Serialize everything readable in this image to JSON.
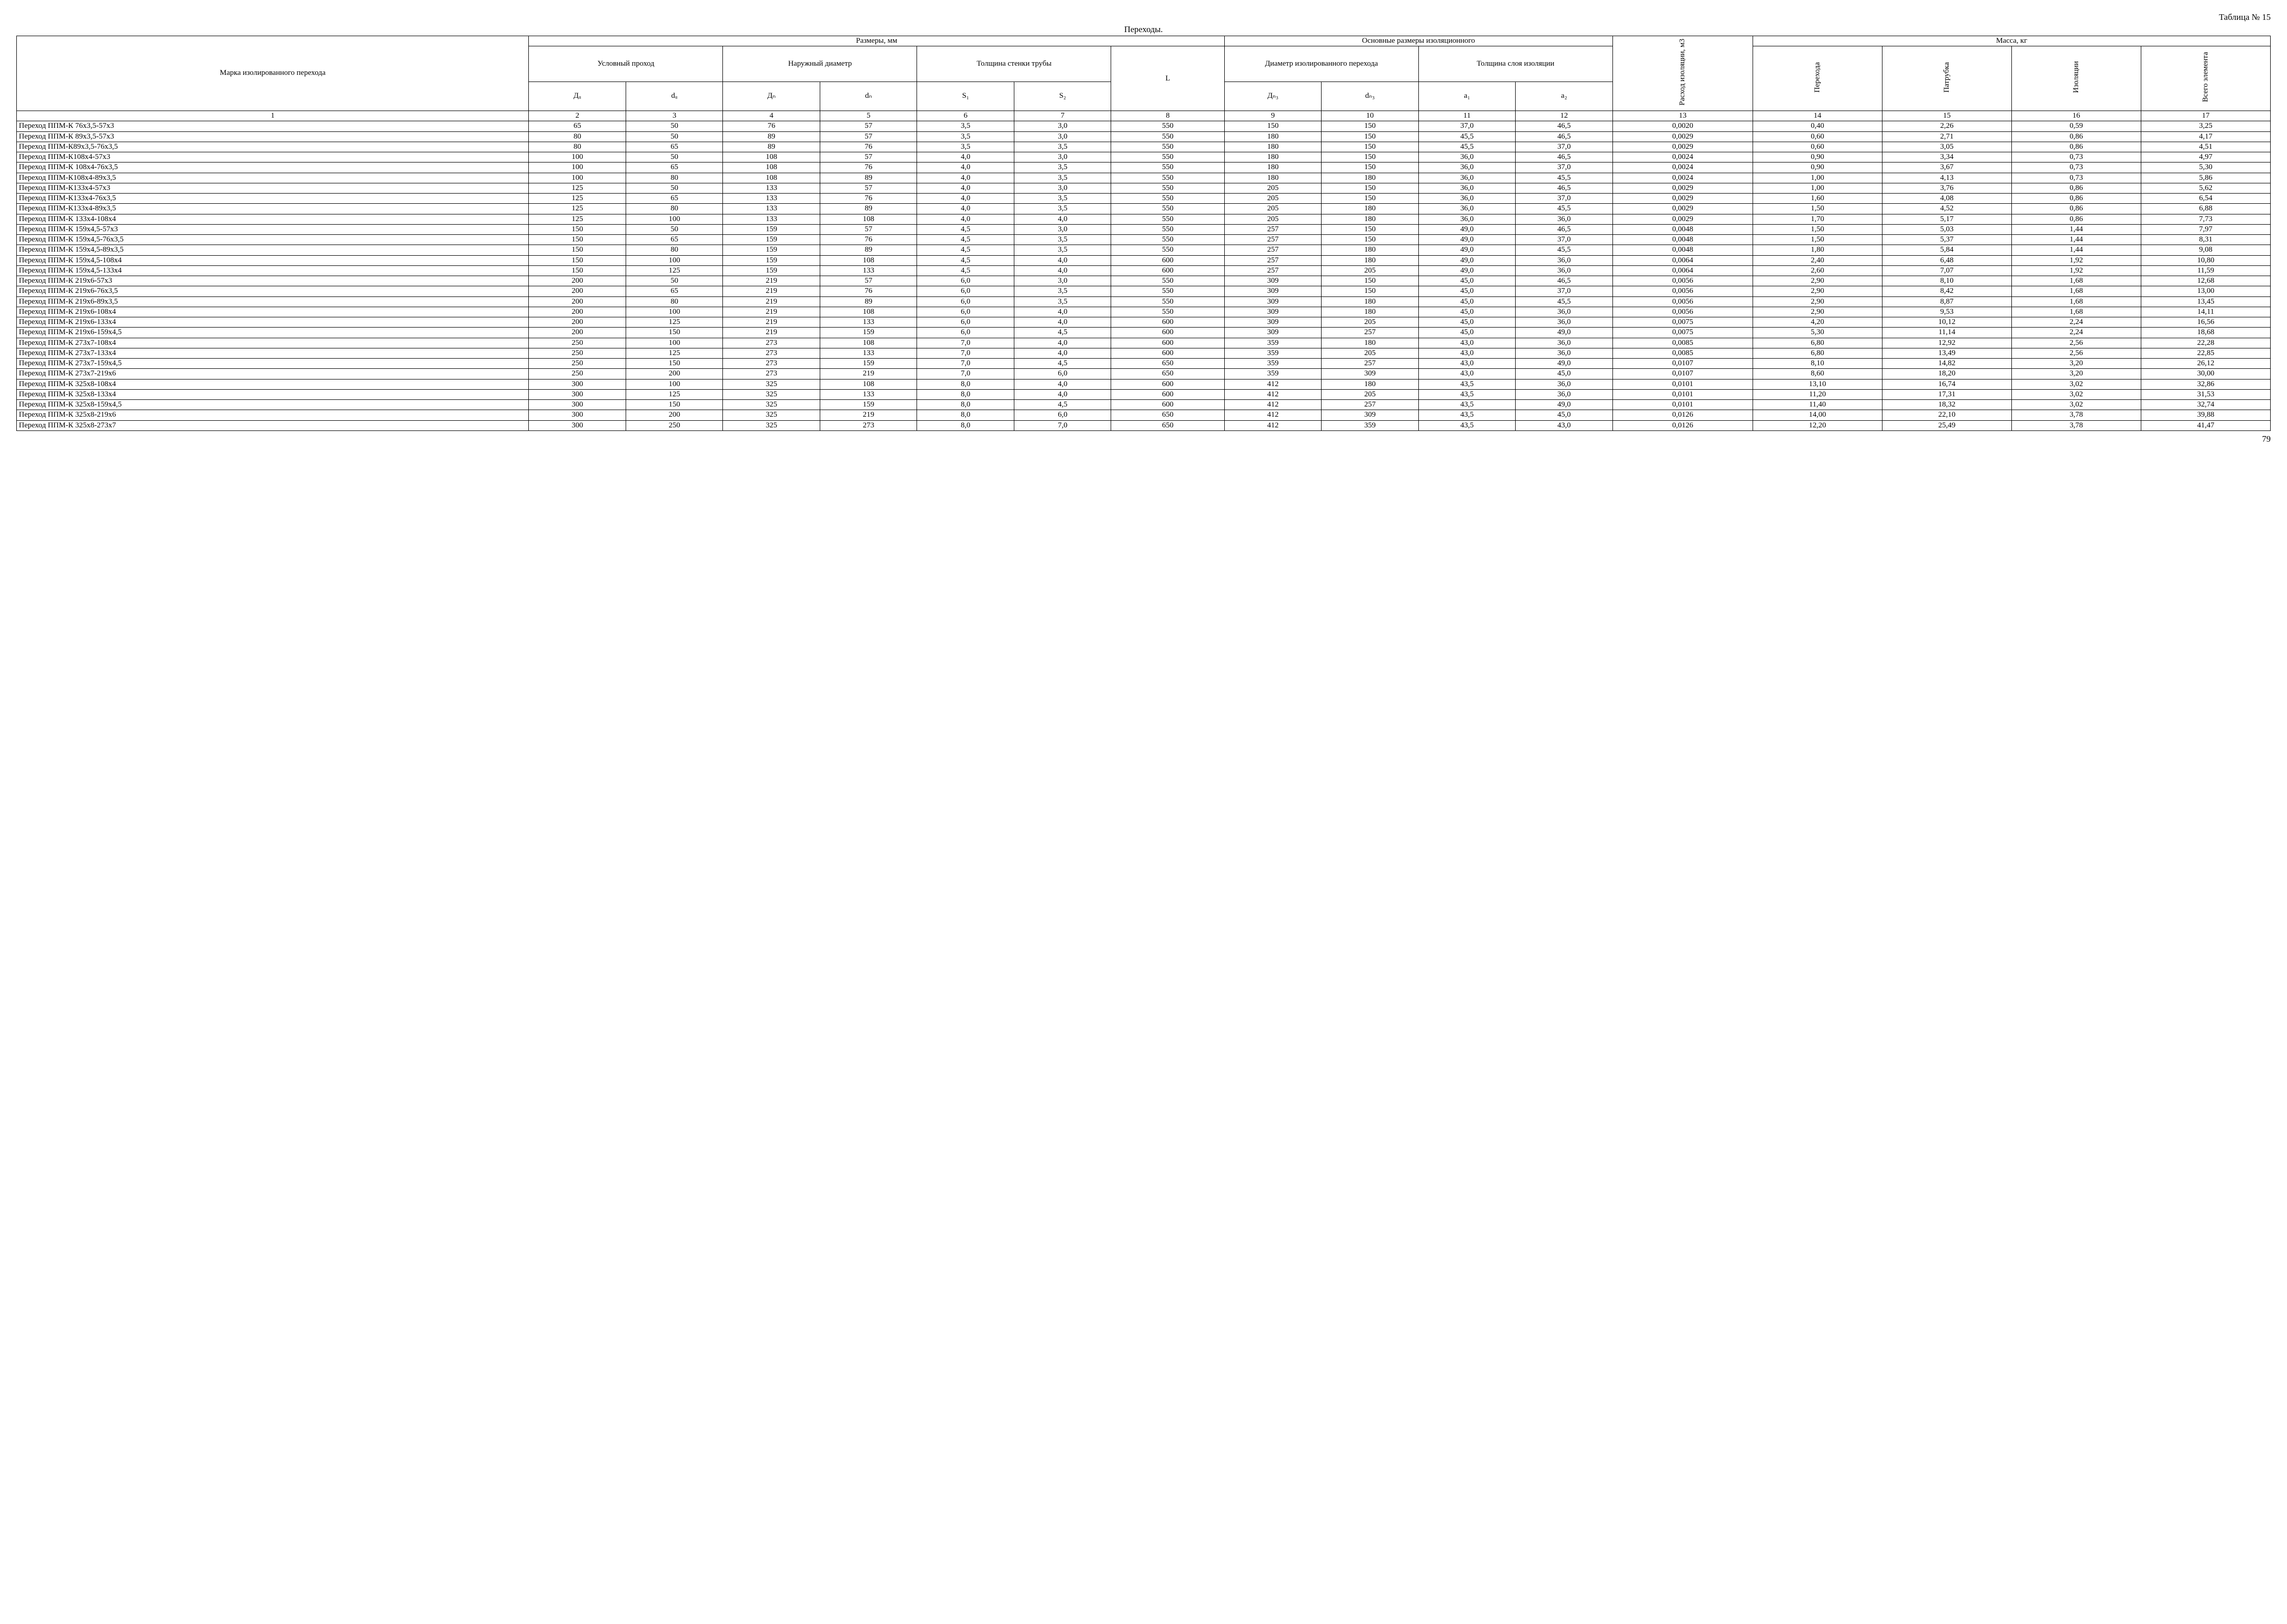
{
  "tableLabel": "Таблица № 15",
  "caption": "Переходы.",
  "pageNumber": "79",
  "header": {
    "name": "Марка изолированного перехода",
    "dims": "Размеры, мм",
    "nominal": "Условный проход",
    "outer": "Наружный диаметр",
    "wall": "Толщина стенки трубы",
    "L": "L",
    "insulMain": "Основные размеры изоляционного",
    "diamInsul": "Диаметр изолированного перехода",
    "thickLayer": "Толщина слоя изоляции",
    "consump": "Расход изоляции, м3",
    "mass": "Масса, кг",
    "massPerehod": "Перехода",
    "massPatrubka": "Патрубка",
    "massIzol": "Изоляции",
    "massTotal": "Всего элемента",
    "Dy": "Дᵤ",
    "dy": "dᵤ",
    "Dn": "Дₙ",
    "dn": "dₙ",
    "S1": "S₁",
    "S2": "S₂",
    "Diz": "Дₙ₃",
    "diz": "dₙ₃",
    "a1": "a₁",
    "a2": "a₂",
    "colnums": [
      "1",
      "2",
      "3",
      "4",
      "5",
      "6",
      "7",
      "8",
      "9",
      "10",
      "11",
      "12",
      "13",
      "14",
      "15",
      "16",
      "17"
    ]
  },
  "rows": [
    {
      "n": "Переход ППМ-К 76х3,5-57х3",
      "c": [
        "65",
        "50",
        "76",
        "57",
        "3,5",
        "3,0",
        "550",
        "150",
        "150",
        "37,0",
        "46,5",
        "0,0020",
        "0,40",
        "2,26",
        "0,59",
        "3,25"
      ]
    },
    {
      "n": "Переход ППМ-К 89х3,5-57х3",
      "c": [
        "80",
        "50",
        "89",
        "57",
        "3,5",
        "3,0",
        "550",
        "180",
        "150",
        "45,5",
        "46,5",
        "0,0029",
        "0,60",
        "2,71",
        "0,86",
        "4,17"
      ]
    },
    {
      "n": "Переход ППМ-К89х3,5-76х3,5",
      "c": [
        "80",
        "65",
        "89",
        "76",
        "3,5",
        "3,5",
        "550",
        "180",
        "150",
        "45,5",
        "37,0",
        "0,0029",
        "0,60",
        "3,05",
        "0,86",
        "4,51"
      ]
    },
    {
      "n": "Переход ППМ-К108х4-57х3",
      "c": [
        "100",
        "50",
        "108",
        "57",
        "4,0",
        "3,0",
        "550",
        "180",
        "150",
        "36,0",
        "46,5",
        "0,0024",
        "0,90",
        "3,34",
        "0,73",
        "4,97"
      ]
    },
    {
      "n": "Переход ППМ-К 108х4-76х3,5",
      "c": [
        "100",
        "65",
        "108",
        "76",
        "4,0",
        "3,5",
        "550",
        "180",
        "150",
        "36,0",
        "37,0",
        "0,0024",
        "0,90",
        "3,67",
        "0,73",
        "5,30"
      ]
    },
    {
      "n": "Переход ППМ-К108х4-89х3,5",
      "c": [
        "100",
        "80",
        "108",
        "89",
        "4,0",
        "3,5",
        "550",
        "180",
        "180",
        "36,0",
        "45,5",
        "0,0024",
        "1,00",
        "4,13",
        "0,73",
        "5,86"
      ]
    },
    {
      "n": "Переход ППМ-К133х4-57х3",
      "c": [
        "125",
        "50",
        "133",
        "57",
        "4,0",
        "3,0",
        "550",
        "205",
        "150",
        "36,0",
        "46,5",
        "0,0029",
        "1,00",
        "3,76",
        "0,86",
        "5,62"
      ]
    },
    {
      "n": "Переход ППМ-К133х4-76х3,5",
      "c": [
        "125",
        "65",
        "133",
        "76",
        "4,0",
        "3,5",
        "550",
        "205",
        "150",
        "36,0",
        "37,0",
        "0,0029",
        "1,60",
        "4,08",
        "0,86",
        "6,54"
      ]
    },
    {
      "n": "Переход ППМ-К133х4-89х3,5",
      "c": [
        "125",
        "80",
        "133",
        "89",
        "4,0",
        "3,5",
        "550",
        "205",
        "180",
        "36,0",
        "45,5",
        "0,0029",
        "1,50",
        "4,52",
        "0,86",
        "6,88"
      ]
    },
    {
      "n": "Переход ППМ-К 133х4-108х4",
      "c": [
        "125",
        "100",
        "133",
        "108",
        "4,0",
        "4,0",
        "550",
        "205",
        "180",
        "36,0",
        "36,0",
        "0,0029",
        "1,70",
        "5,17",
        "0,86",
        "7,73"
      ]
    },
    {
      "n": "Переход ППМ-К 159х4,5-57х3",
      "c": [
        "150",
        "50",
        "159",
        "57",
        "4,5",
        "3,0",
        "550",
        "257",
        "150",
        "49,0",
        "46,5",
        "0,0048",
        "1,50",
        "5,03",
        "1,44",
        "7,97"
      ]
    },
    {
      "n": "Переход ППМ-К 159х4,5-76х3,5",
      "c": [
        "150",
        "65",
        "159",
        "76",
        "4,5",
        "3,5",
        "550",
        "257",
        "150",
        "49,0",
        "37,0",
        "0,0048",
        "1,50",
        "5,37",
        "1,44",
        "8,31"
      ]
    },
    {
      "n": "Переход ППМ-К 159х4,5-89х3,5",
      "c": [
        "150",
        "80",
        "159",
        "89",
        "4,5",
        "3,5",
        "550",
        "257",
        "180",
        "49,0",
        "45,5",
        "0,0048",
        "1,80",
        "5,84",
        "1,44",
        "9,08"
      ]
    },
    {
      "n": "Переход ППМ-К 159х4,5-108х4",
      "c": [
        "150",
        "100",
        "159",
        "108",
        "4,5",
        "4,0",
        "600",
        "257",
        "180",
        "49,0",
        "36,0",
        "0,0064",
        "2,40",
        "6,48",
        "1,92",
        "10,80"
      ]
    },
    {
      "n": "Переход ППМ-К 159х4,5-133х4",
      "c": [
        "150",
        "125",
        "159",
        "133",
        "4,5",
        "4,0",
        "600",
        "257",
        "205",
        "49,0",
        "36,0",
        "0,0064",
        "2,60",
        "7,07",
        "1,92",
        "11,59"
      ]
    },
    {
      "n": "Переход ППМ-К 219х6-57х3",
      "c": [
        "200",
        "50",
        "219",
        "57",
        "6,0",
        "3,0",
        "550",
        "309",
        "150",
        "45,0",
        "46,5",
        "0,0056",
        "2,90",
        "8,10",
        "1,68",
        "12,68"
      ]
    },
    {
      "n": "Переход ППМ-К 219х6-76х3,5",
      "c": [
        "200",
        "65",
        "219",
        "76",
        "6,0",
        "3,5",
        "550",
        "309",
        "150",
        "45,0",
        "37,0",
        "0,0056",
        "2,90",
        "8,42",
        "1,68",
        "13,00"
      ]
    },
    {
      "n": "Переход ППМ-К 219х6-89х3,5",
      "c": [
        "200",
        "80",
        "219",
        "89",
        "6,0",
        "3,5",
        "550",
        "309",
        "180",
        "45,0",
        "45,5",
        "0,0056",
        "2,90",
        "8,87",
        "1,68",
        "13,45"
      ]
    },
    {
      "n": "Переход ППМ-К 219х6-108х4",
      "c": [
        "200",
        "100",
        "219",
        "108",
        "6,0",
        "4,0",
        "550",
        "309",
        "180",
        "45,0",
        "36,0",
        "0,0056",
        "2,90",
        "9,53",
        "1,68",
        "14,11"
      ]
    },
    {
      "n": "Переход ППМ-К 219х6-133х4",
      "c": [
        "200",
        "125",
        "219",
        "133",
        "6,0",
        "4,0",
        "600",
        "309",
        "205",
        "45,0",
        "36,0",
        "0,0075",
        "4,20",
        "10,12",
        "2,24",
        "16,56"
      ]
    },
    {
      "n": "Переход ППМ-К 219х6-159х4,5",
      "c": [
        "200",
        "150",
        "219",
        "159",
        "6,0",
        "4,5",
        "600",
        "309",
        "257",
        "45,0",
        "49,0",
        "0,0075",
        "5,30",
        "11,14",
        "2,24",
        "18,68"
      ]
    },
    {
      "n": "Переход ППМ-К 273х7-108х4",
      "c": [
        "250",
        "100",
        "273",
        "108",
        "7,0",
        "4,0",
        "600",
        "359",
        "180",
        "43,0",
        "36,0",
        "0,0085",
        "6,80",
        "12,92",
        "2,56",
        "22,28"
      ]
    },
    {
      "n": "Переход ППМ-К 273х7-133х4",
      "c": [
        "250",
        "125",
        "273",
        "133",
        "7,0",
        "4,0",
        "600",
        "359",
        "205",
        "43,0",
        "36,0",
        "0,0085",
        "6,80",
        "13,49",
        "2,56",
        "22,85"
      ]
    },
    {
      "n": "Переход ППМ-К 273х7-159х4,5",
      "c": [
        "250",
        "150",
        "273",
        "159",
        "7,0",
        "4,5",
        "650",
        "359",
        "257",
        "43,0",
        "49,0",
        "0,0107",
        "8,10",
        "14,82",
        "3,20",
        "26,12"
      ]
    },
    {
      "n": "Переход ППМ-К 273х7-219х6",
      "c": [
        "250",
        "200",
        "273",
        "219",
        "7,0",
        "6,0",
        "650",
        "359",
        "309",
        "43,0",
        "45,0",
        "0,0107",
        "8,60",
        "18,20",
        "3,20",
        "30,00"
      ]
    },
    {
      "n": "Переход ППМ-К 325х8-108х4",
      "c": [
        "300",
        "100",
        "325",
        "108",
        "8,0",
        "4,0",
        "600",
        "412",
        "180",
        "43,5",
        "36,0",
        "0,0101",
        "13,10",
        "16,74",
        "3,02",
        "32,86"
      ]
    },
    {
      "n": "Переход ППМ-К 325х8-133х4",
      "c": [
        "300",
        "125",
        "325",
        "133",
        "8,0",
        "4,0",
        "600",
        "412",
        "205",
        "43,5",
        "36,0",
        "0,0101",
        "11,20",
        "17,31",
        "3,02",
        "31,53"
      ]
    },
    {
      "n": "Переход ППМ-К 325х8-159х4,5",
      "c": [
        "300",
        "150",
        "325",
        "159",
        "8,0",
        "4,5",
        "600",
        "412",
        "257",
        "43,5",
        "49,0",
        "0,0101",
        "11,40",
        "18,32",
        "3,02",
        "32,74"
      ]
    },
    {
      "n": "Переход ППМ-К 325х8-219х6",
      "c": [
        "300",
        "200",
        "325",
        "219",
        "8,0",
        "6,0",
        "650",
        "412",
        "309",
        "43,5",
        "45,0",
        "0,0126",
        "14,00",
        "22,10",
        "3,78",
        "39,88"
      ]
    },
    {
      "n": "Переход ППМ-К 325х8-273х7",
      "c": [
        "300",
        "250",
        "325",
        "273",
        "8,0",
        "7,0",
        "650",
        "412",
        "359",
        "43,5",
        "43,0",
        "0,0126",
        "12,20",
        "25,49",
        "3,78",
        "41,47"
      ]
    }
  ]
}
